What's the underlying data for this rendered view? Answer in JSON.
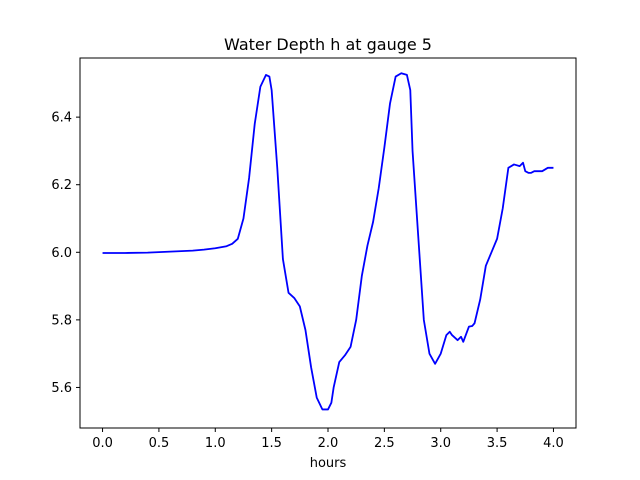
{
  "chart_data": {
    "type": "line",
    "title": "Water Depth h at gauge 5",
    "xlabel": "hours",
    "ylabel": "",
    "xlim": [
      -0.2,
      4.2
    ],
    "ylim": [
      5.48,
      6.575
    ],
    "grid": false,
    "xticks": [
      0.0,
      0.5,
      1.0,
      1.5,
      2.0,
      2.5,
      3.0,
      3.5,
      4.0
    ],
    "xtick_labels": [
      "0.0",
      "0.5",
      "1.0",
      "1.5",
      "2.0",
      "2.5",
      "3.0",
      "3.5",
      "4.0"
    ],
    "yticks": [
      5.6,
      5.8,
      6.0,
      6.2,
      6.4
    ],
    "ytick_labels": [
      "5.6",
      "5.8",
      "6.0",
      "6.2",
      "6.4"
    ],
    "series": [
      {
        "color": "#0000ff",
        "x": [
          0.0,
          0.2,
          0.4,
          0.6,
          0.8,
          0.9,
          1.0,
          1.1,
          1.15,
          1.2,
          1.25,
          1.3,
          1.35,
          1.4,
          1.45,
          1.48,
          1.5,
          1.55,
          1.6,
          1.65,
          1.7,
          1.75,
          1.8,
          1.85,
          1.9,
          1.95,
          2.0,
          2.03,
          2.05,
          2.1,
          2.15,
          2.2,
          2.25,
          2.3,
          2.35,
          2.4,
          2.45,
          2.5,
          2.55,
          2.6,
          2.65,
          2.7,
          2.73,
          2.75,
          2.8,
          2.85,
          2.9,
          2.95,
          3.0,
          3.05,
          3.08,
          3.1,
          3.15,
          3.18,
          3.2,
          3.25,
          3.28,
          3.3,
          3.35,
          3.4,
          3.45,
          3.5,
          3.55,
          3.6,
          3.65,
          3.7,
          3.73,
          3.75,
          3.78,
          3.8,
          3.83,
          3.85,
          3.9,
          3.95,
          4.0
        ],
        "values": [
          5.998,
          5.998,
          5.999,
          6.002,
          6.005,
          6.008,
          6.012,
          6.018,
          6.025,
          6.04,
          6.1,
          6.22,
          6.38,
          6.49,
          6.525,
          6.52,
          6.48,
          6.25,
          5.98,
          5.88,
          5.865,
          5.84,
          5.77,
          5.66,
          5.57,
          5.535,
          5.535,
          5.555,
          5.6,
          5.675,
          5.695,
          5.72,
          5.8,
          5.93,
          6.02,
          6.09,
          6.19,
          6.31,
          6.44,
          6.52,
          6.53,
          6.525,
          6.48,
          6.3,
          6.05,
          5.8,
          5.7,
          5.67,
          5.7,
          5.755,
          5.765,
          5.755,
          5.74,
          5.75,
          5.735,
          5.78,
          5.782,
          5.79,
          5.86,
          5.96,
          6.0,
          6.04,
          6.13,
          6.25,
          6.26,
          6.255,
          6.265,
          6.24,
          6.235,
          6.235,
          6.24,
          6.24,
          6.24,
          6.25,
          6.25
        ]
      }
    ]
  }
}
